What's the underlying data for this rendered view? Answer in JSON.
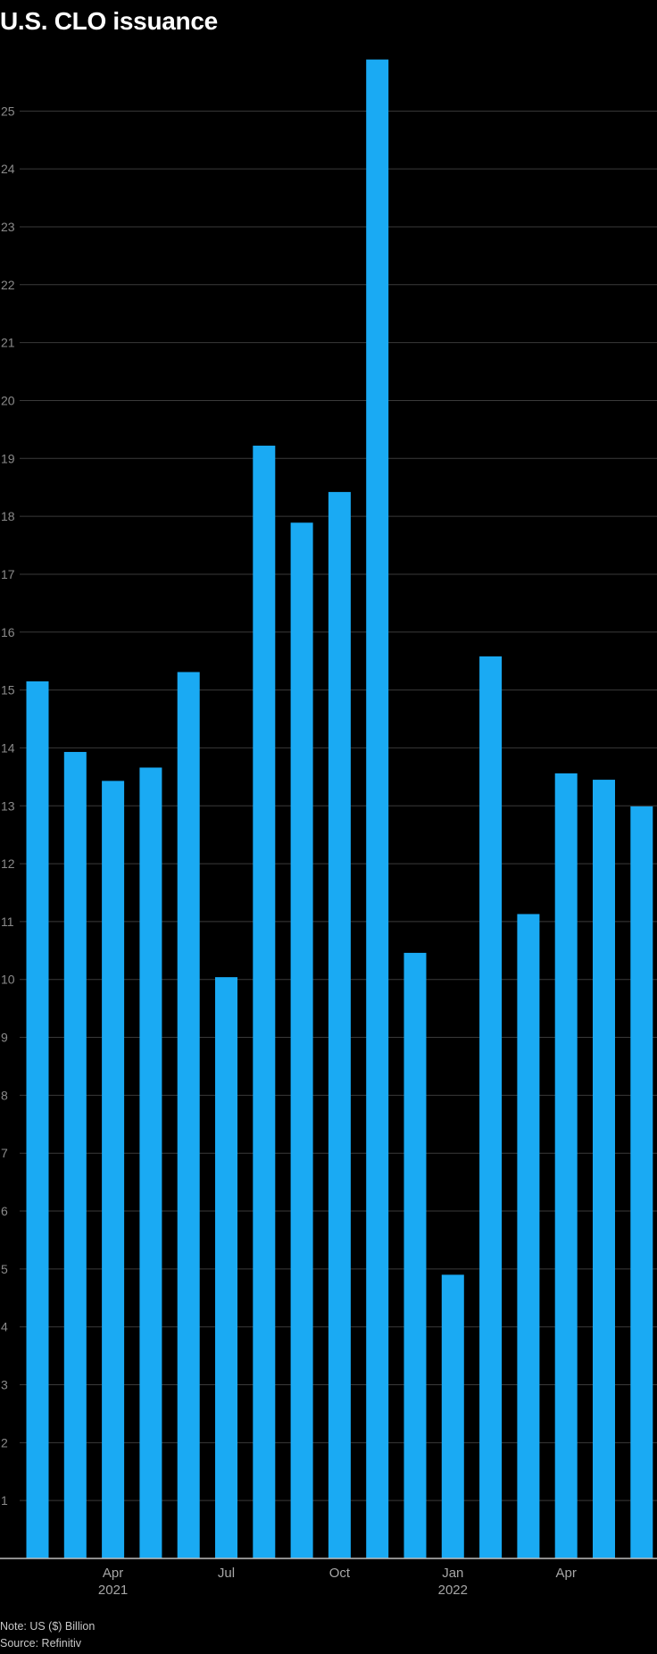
{
  "chart_data": {
    "type": "bar",
    "title": "U.S. CLO issuance",
    "note": "Note: US ($) Billion",
    "source": "Source: Refinitiv",
    "colors": {
      "bar": "#1aaaf3",
      "background": "#000000",
      "grid": "#3a3a3a",
      "axis": "#bdbdbd"
    },
    "ylim": [
      0,
      26
    ],
    "yticks": [
      1,
      2,
      3,
      4,
      5,
      6,
      7,
      8,
      9,
      10,
      11,
      12,
      13,
      14,
      15,
      16,
      17,
      18,
      19,
      20,
      21,
      22,
      23,
      24,
      25
    ],
    "grid": true,
    "categories": [
      "Feb 2021",
      "Mar 2021",
      "Apr 2021",
      "May 2021",
      "Jun 2021",
      "Jul 2021",
      "Aug 2021",
      "Sep 2021",
      "Oct 2021",
      "Nov 2021",
      "Dec 2021",
      "Jan 2022",
      "Feb 2022",
      "Mar 2022",
      "Apr 2022",
      "May 2022",
      "Jun 2022"
    ],
    "values": [
      15.15,
      13.93,
      13.43,
      13.66,
      15.31,
      10.04,
      19.22,
      17.89,
      18.42,
      25.89,
      10.46,
      4.9,
      15.58,
      11.13,
      13.56,
      13.45,
      12.99
    ],
    "xtick_labels": [
      {
        "category": "Apr 2021",
        "label": "Apr",
        "sublabel": "2021"
      },
      {
        "category": "Jul 2021",
        "label": "Jul",
        "sublabel": ""
      },
      {
        "category": "Oct 2021",
        "label": "Oct",
        "sublabel": ""
      },
      {
        "category": "Jan 2022",
        "label": "Jan",
        "sublabel": "2022"
      },
      {
        "category": "Apr 2022",
        "label": "Apr",
        "sublabel": ""
      }
    ]
  }
}
